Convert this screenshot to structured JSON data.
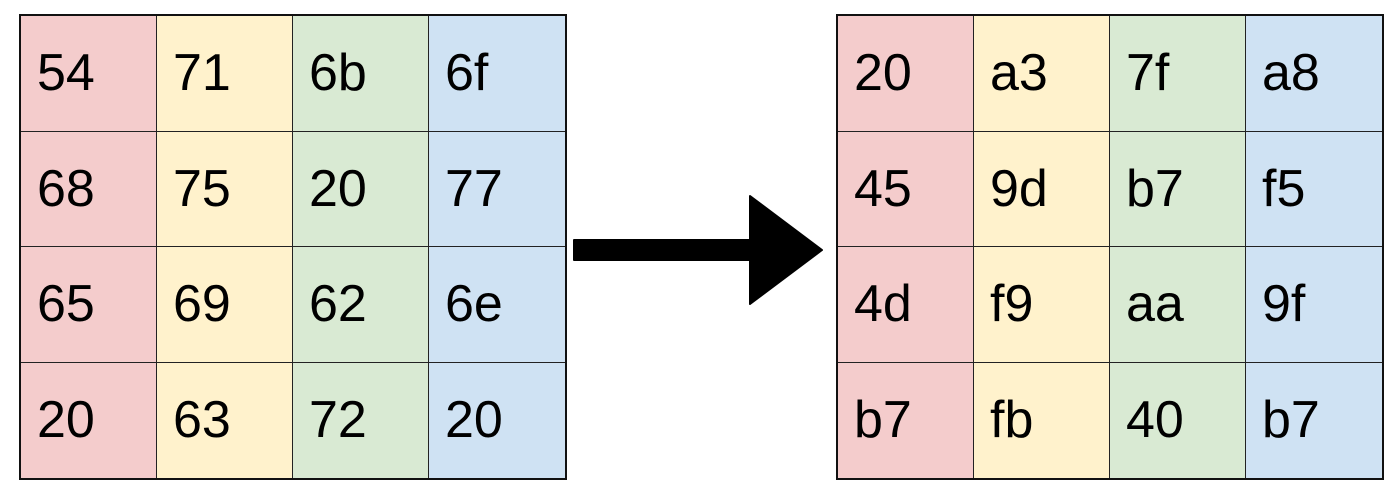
{
  "column_colors": [
    "#f4cccc",
    "#fff2cc",
    "#d9ead3",
    "#cfe2f3"
  ],
  "arrow_color": "#000000",
  "input_matrix": {
    "rows": [
      [
        "54",
        "71",
        "6b",
        "6f"
      ],
      [
        "68",
        "75",
        "20",
        "77"
      ],
      [
        "65",
        "69",
        "62",
        "6e"
      ],
      [
        "20",
        "63",
        "72",
        "20"
      ]
    ]
  },
  "output_matrix": {
    "rows": [
      [
        "20",
        "a3",
        "7f",
        "a8"
      ],
      [
        "45",
        "9d",
        "b7",
        "f5"
      ],
      [
        "4d",
        "f9",
        "aa",
        "9f"
      ],
      [
        "b7",
        "fb",
        "40",
        "b7"
      ]
    ]
  }
}
